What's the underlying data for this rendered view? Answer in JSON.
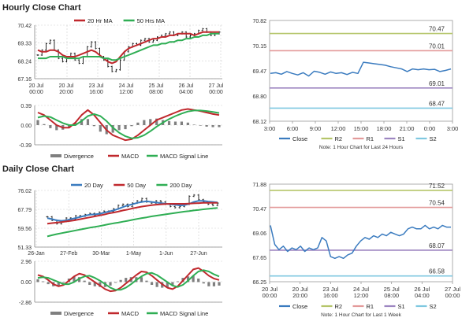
{
  "headers": {
    "hourly": "Hourly Close Chart",
    "daily": "Daily Close Chart"
  },
  "chart_data": [
    {
      "id": "hourly_price",
      "type": "line",
      "legend": [
        "20 Hr MA",
        "50 Hrs MA"
      ],
      "colors": {
        "20 Hr MA": "#c0282d",
        "50 Hrs MA": "#2fae54",
        "price": "#111111"
      },
      "ylim": [
        67.16,
        70.42
      ],
      "yticks": [
        "70.42",
        "69.33",
        "68.24",
        "67.16"
      ],
      "xticks": [
        "20 Jul\n00:00",
        "20 Jul\n20:00",
        "23 Jul\n16:00",
        "24 Jul\n12:00",
        "25 Jul\n08:00",
        "26 Jul\n04:00",
        "27 Jul\n00:00"
      ],
      "price": [
        68.6,
        68.9,
        69.3,
        69.5,
        68.9,
        68.4,
        68.2,
        68.5,
        68.7,
        68.3,
        68.1,
        68.5,
        69.1,
        69.4,
        69.0,
        68.5,
        68.3,
        67.9,
        67.6,
        67.7,
        68.3,
        68.8,
        69.1,
        69.3,
        69.2,
        69.5,
        69.6,
        69.4,
        69.5,
        69.7,
        69.8,
        69.9,
        70.0,
        69.8,
        69.9,
        70.0,
        69.7,
        69.8,
        69.9,
        70.1,
        70.2,
        70.0,
        69.8,
        69.9,
        70.0
      ],
      "series": [
        {
          "name": "20 Hr MA",
          "values": [
            68.9,
            68.8,
            68.8,
            68.9,
            68.9,
            68.8,
            68.6,
            68.5,
            68.5,
            68.5,
            68.6,
            68.7,
            68.8,
            68.9,
            68.8,
            68.6,
            68.4,
            68.2,
            68.1,
            68.2,
            68.5,
            68.8,
            69.0,
            69.1,
            69.2,
            69.3,
            69.4,
            69.5,
            69.6,
            69.6,
            69.7,
            69.7,
            69.8,
            69.8,
            69.9,
            69.9,
            69.9,
            69.9,
            69.8,
            69.9,
            70.0,
            70.0,
            70.0,
            70.0,
            70.0
          ]
        },
        {
          "name": "50 Hrs MA",
          "values": [
            68.4,
            68.4,
            68.4,
            68.5,
            68.5,
            68.5,
            68.5,
            68.4,
            68.4,
            68.4,
            68.4,
            68.5,
            68.5,
            68.5,
            68.5,
            68.5,
            68.4,
            68.4,
            68.3,
            68.3,
            68.4,
            68.5,
            68.6,
            68.7,
            68.8,
            68.9,
            69.0,
            69.1,
            69.2,
            69.2,
            69.3,
            69.3,
            69.4,
            69.4,
            69.5,
            69.5,
            69.6,
            69.6,
            69.7,
            69.7,
            69.8,
            69.8,
            69.9,
            69.9,
            69.9
          ]
        }
      ]
    },
    {
      "id": "hourly_macd",
      "type": "line",
      "ylim": [
        -0.39,
        0.39
      ],
      "yticks": [
        "0.39",
        "0.00",
        "-0.39"
      ],
      "legend": [
        "Divergence",
        "MACD",
        "MACD Signal Line"
      ],
      "colors": {
        "Divergence": "#7f7f7f",
        "MACD": "#c0282d",
        "MACD Signal Line": "#2fae54"
      },
      "series": [
        {
          "name": "MACD",
          "values": [
            0.25,
            0.2,
            0.1,
            0.0,
            -0.05,
            -0.05,
            0.05,
            0.2,
            0.3,
            0.2,
            0.05,
            -0.1,
            -0.2,
            -0.25,
            -0.3,
            -0.28,
            -0.2,
            -0.1,
            0.0,
            0.1,
            0.15,
            0.2,
            0.25,
            0.3,
            0.32,
            0.3,
            0.28,
            0.25,
            0.22,
            0.2
          ]
        },
        {
          "name": "MACD Signal Line",
          "values": [
            0.15,
            0.18,
            0.16,
            0.1,
            0.04,
            0.0,
            0.0,
            0.08,
            0.18,
            0.22,
            0.18,
            0.08,
            -0.05,
            -0.15,
            -0.22,
            -0.26,
            -0.25,
            -0.2,
            -0.12,
            -0.03,
            0.05,
            0.12,
            0.18,
            0.23,
            0.27,
            0.29,
            0.29,
            0.28,
            0.26,
            0.24
          ]
        },
        {
          "name": "Divergence",
          "values": [
            0.1,
            0.02,
            -0.06,
            -0.1,
            -0.09,
            -0.05,
            0.05,
            0.12,
            0.12,
            -0.02,
            -0.13,
            -0.18,
            -0.15,
            -0.1,
            -0.08,
            -0.02,
            0.05,
            0.1,
            0.12,
            0.13,
            0.1,
            0.08,
            0.07,
            0.07,
            0.05,
            0.01,
            -0.01,
            -0.03,
            -0.04,
            -0.04
          ]
        }
      ]
    },
    {
      "id": "hourly_pivot",
      "type": "line",
      "ylim": [
        68.12,
        70.82
      ],
      "yticks": [
        "70.82",
        "70.15",
        "69.47",
        "68.80",
        "68.12"
      ],
      "xticks": [
        "3:00",
        "6:00",
        "9:00",
        "12:00",
        "15:00",
        "18:00",
        "21:00",
        "0:00",
        "3:00"
      ],
      "levels": [
        {
          "name": "R2",
          "value": 70.47,
          "label": "70.47",
          "color": "#b5c56a"
        },
        {
          "name": "R1",
          "value": 70.01,
          "label": "70.01",
          "color": "#e39a9a"
        },
        {
          "name": "S1",
          "value": 69.01,
          "label": "69.01",
          "color": "#9d86c1"
        },
        {
          "name": "S2",
          "value": 68.47,
          "label": "68.47",
          "color": "#7fc8e0"
        }
      ],
      "close": [
        69.4,
        69.42,
        69.38,
        69.45,
        69.4,
        69.36,
        69.42,
        69.33,
        69.46,
        69.43,
        69.38,
        69.44,
        69.4,
        69.42,
        69.37,
        69.43,
        69.4,
        69.7,
        69.68,
        69.66,
        69.64,
        69.62,
        69.58,
        69.55,
        69.52,
        69.45,
        69.52,
        69.5,
        69.52,
        69.5,
        69.51,
        69.45,
        69.48,
        69.52
      ],
      "legend": [
        "Close",
        "R2",
        "R1",
        "S1",
        "S2"
      ],
      "note": "Note: 1 Hour Chart for Last 24 Hours"
    },
    {
      "id": "daily_price",
      "type": "line",
      "legend": [
        "20 Day",
        "50 Day",
        "200 Day"
      ],
      "colors": {
        "20 Day": "#3a7bbf",
        "50 Day": "#c0282d",
        "200 Day": "#2fae54",
        "price": "#111111"
      },
      "ylim": [
        51.33,
        76.02
      ],
      "yticks": [
        "76.02",
        "67.79",
        "59.56",
        "51.33"
      ],
      "xticks": [
        "26-Jan",
        "27-Feb",
        "30-Mar",
        "1-May",
        "1-Jun",
        "27-Jun"
      ],
      "price": [
        64.5,
        63.0,
        61.5,
        62.5,
        64.0,
        63.5,
        65.0,
        64.8,
        65.5,
        66.0,
        65.2,
        66.5,
        67.0,
        66.8,
        68.0,
        69.5,
        70.0,
        69.0,
        70.5,
        71.5,
        72.5,
        71.0,
        70.5,
        71.5,
        71.0,
        70.0,
        69.0,
        68.5,
        69.0,
        70.0,
        73.5,
        74.0,
        72.0,
        71.0,
        70.0,
        69.5,
        70.5
      ],
      "series": [
        {
          "name": "20 Day",
          "values": [
            64.0,
            63.5,
            63.0,
            62.8,
            63.0,
            63.5,
            64.0,
            64.5,
            65.0,
            65.5,
            65.6,
            65.8,
            66.3,
            66.8,
            67.3,
            68.0,
            68.8,
            69.5,
            70.0,
            70.6,
            71.0,
            71.3,
            71.0,
            70.8,
            70.5,
            70.3,
            70.0,
            69.8,
            69.5,
            69.6,
            70.2,
            71.0,
            71.5,
            71.5,
            71.2,
            71.0,
            70.8
          ]
        },
        {
          "name": "50 Day",
          "values": [
            61.5,
            61.8,
            62.0,
            62.2,
            62.5,
            62.8,
            63.1,
            63.5,
            63.9,
            64.3,
            64.7,
            65.1,
            65.5,
            66.0,
            66.4,
            66.8,
            67.3,
            67.7,
            68.2,
            68.6,
            69.0,
            69.3,
            69.6,
            69.8,
            70.0,
            70.1,
            70.2,
            70.2,
            70.2,
            70.2,
            70.3,
            70.4,
            70.5,
            70.6,
            70.6,
            70.6,
            70.6
          ]
        },
        {
          "name": "200 Day",
          "values": [
            56.0,
            56.5,
            57.0,
            57.4,
            57.8,
            58.2,
            58.6,
            59.0,
            59.4,
            59.8,
            60.1,
            60.5,
            60.9,
            61.3,
            61.7,
            62.0,
            62.4,
            62.8,
            63.2,
            63.6,
            64.0,
            64.3,
            64.7,
            65.0,
            65.3,
            65.6,
            65.9,
            66.2,
            66.5,
            66.8,
            67.0,
            67.3,
            67.5,
            67.8,
            68.0,
            68.2,
            68.4
          ]
        }
      ]
    },
    {
      "id": "daily_macd",
      "type": "line",
      "ylim": [
        -2.86,
        2.96
      ],
      "yticks": [
        "2.96",
        "0.00",
        "-2.86"
      ],
      "legend": [
        "Divergence",
        "MACD",
        "MACD Signal Line"
      ],
      "colors": {
        "Divergence": "#7f7f7f",
        "MACD": "#c0282d",
        "MACD Signal Line": "#2fae54"
      },
      "series": [
        {
          "name": "MACD",
          "values": [
            1.0,
            0.8,
            0.3,
            -0.3,
            -0.6,
            -0.4,
            0.2,
            0.8,
            1.2,
            1.0,
            0.5,
            0.0,
            -0.5,
            -1.0,
            -1.3,
            -1.2,
            -0.8,
            -0.2,
            0.4,
            1.0,
            1.5,
            1.4,
            0.9,
            0.3,
            -0.3,
            -0.8,
            -1.0,
            -0.6,
            0.2,
            1.0,
            1.8,
            2.0,
            1.5,
            0.9,
            0.5,
            0.3
          ]
        },
        {
          "name": "MACD Signal Line",
          "values": [
            0.6,
            0.7,
            0.6,
            0.3,
            0.0,
            -0.3,
            -0.3,
            0.0,
            0.5,
            0.8,
            0.9,
            0.6,
            0.2,
            -0.3,
            -0.8,
            -1.1,
            -1.1,
            -0.8,
            -0.3,
            0.3,
            0.8,
            1.2,
            1.3,
            1.0,
            0.5,
            0.0,
            -0.5,
            -0.7,
            -0.4,
            0.2,
            0.9,
            1.5,
            1.7,
            1.5,
            1.1,
            0.8
          ]
        },
        {
          "name": "Divergence",
          "values": [
            0.4,
            0.1,
            -0.3,
            -0.6,
            -0.6,
            -0.1,
            0.5,
            0.8,
            0.7,
            0.2,
            -0.4,
            -0.6,
            -0.7,
            -0.7,
            -0.5,
            -0.1,
            0.3,
            0.6,
            0.7,
            0.7,
            0.7,
            0.2,
            -0.4,
            -0.7,
            -0.8,
            -0.8,
            -0.5,
            0.1,
            0.6,
            0.8,
            0.9,
            0.5,
            -0.2,
            -0.6,
            -0.6,
            -0.5
          ]
        }
      ]
    },
    {
      "id": "daily_pivot",
      "type": "line",
      "ylim": [
        66.25,
        71.88
      ],
      "yticks": [
        "71.88",
        "70.47",
        "69.06",
        "67.65",
        "66.25"
      ],
      "xticks": [
        "20 Jul\n00:00",
        "20 Jul\n20:00",
        "23 Jul\n16:00",
        "24 Jul\n12:00",
        "25 Jul\n08:00",
        "26 Jul\n04:00",
        "27 Jul\n00:00"
      ],
      "levels": [
        {
          "name": "R2",
          "value": 71.52,
          "label": "71.52",
          "color": "#b5c56a"
        },
        {
          "name": "R1",
          "value": 70.54,
          "label": "70.54",
          "color": "#e39a9a"
        },
        {
          "name": "S1",
          "value": 68.07,
          "label": "68.07",
          "color": "#9d86c1"
        },
        {
          "name": "S2",
          "value": 66.58,
          "label": "66.58",
          "color": "#7fc8e0"
        }
      ],
      "close": [
        69.5,
        68.4,
        68.1,
        68.3,
        68.0,
        68.2,
        68.1,
        68.3,
        68.0,
        68.2,
        68.1,
        68.2,
        68.8,
        68.6,
        67.7,
        67.6,
        67.7,
        67.6,
        67.8,
        67.9,
        68.3,
        68.6,
        68.8,
        68.7,
        68.9,
        68.8,
        69.0,
        68.9,
        69.1,
        69.0,
        68.9,
        69.0,
        69.3,
        69.4,
        69.3,
        69.3,
        69.5,
        69.3,
        69.4,
        69.3,
        69.5,
        69.4,
        69.4
      ],
      "legend": [
        "Close",
        "R2",
        "R1",
        "S1",
        "S2"
      ],
      "note": "Note: 1 Hour Chart for Last 1 Week"
    }
  ]
}
